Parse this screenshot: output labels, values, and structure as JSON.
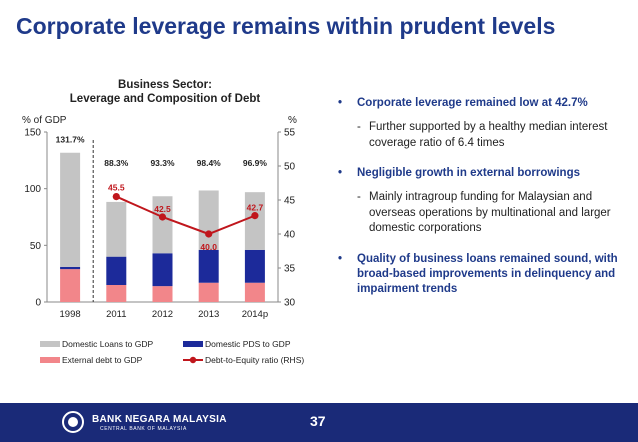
{
  "slide": {
    "title": "Corporate leverage remains within prudent levels",
    "page_number": "37"
  },
  "footer": {
    "bank_name": "BANK NEGARA MALAYSIA",
    "bank_subtitle": "CENTRAL BANK OF MALAYSIA"
  },
  "bullets": [
    {
      "text": "Corporate leverage remained low at 42.7%",
      "sub": "Further supported by a healthy median interest coverage ratio of 6.4 times"
    },
    {
      "text": "Negligible growth in external borrowings",
      "sub": "Mainly intragroup funding for Malaysian and overseas operations by multinational and larger domestic corporations"
    },
    {
      "text": "Quality of business loans remained sound, with broad-based improvements in delinquency and impairment trends",
      "sub": ""
    }
  ],
  "chart_data": {
    "type": "bar",
    "title_line1": "Business Sector:",
    "title_line2": "Leverage and Composition of Debt",
    "ylabel_left": "% of GDP",
    "ylabel_right": "%",
    "ylim_left": [
      0,
      150
    ],
    "yticks_left": [
      "0",
      "50",
      "100",
      "150"
    ],
    "ylim_right": [
      30,
      55
    ],
    "yticks_right": [
      "30",
      "35",
      "40",
      "45",
      "50",
      "55"
    ],
    "categories": [
      "1998",
      "2011",
      "2012",
      "2013",
      "2014p"
    ],
    "stacked": true,
    "series": [
      {
        "name": "External debt to GDP",
        "color": "#f2868a",
        "values": [
          29,
          15,
          14,
          17,
          17
        ]
      },
      {
        "name": "Domestic PDS to GDP",
        "color": "#1c2a9a",
        "values": [
          2,
          25,
          29,
          29,
          29
        ]
      },
      {
        "name": "Domestic Loans to GDP",
        "color": "#c4c4c4",
        "values": [
          100.7,
          48.3,
          50.3,
          52.4,
          50.9
        ]
      },
      {
        "name": "Debt-to-Equity ratio (RHS)",
        "type": "line",
        "color": "#c0161c",
        "axis": "right",
        "x": [
          "2011",
          "2012",
          "2013",
          "2014p"
        ],
        "values": [
          45.5,
          42.5,
          40.0,
          42.7
        ]
      }
    ],
    "total_labels": [
      "131.7%",
      "88.3%",
      "93.3%",
      "98.4%",
      "96.9%"
    ],
    "line_labels": [
      "45.5",
      "42.5",
      "40.0",
      "42.7"
    ],
    "legend_position": "bottom",
    "legend_order": [
      "Domestic Loans to GDP",
      "Domestic PDS to GDP",
      "External debt to GDP",
      "Debt-to-Equity ratio (RHS)"
    ],
    "divider_after_first_category": true
  }
}
